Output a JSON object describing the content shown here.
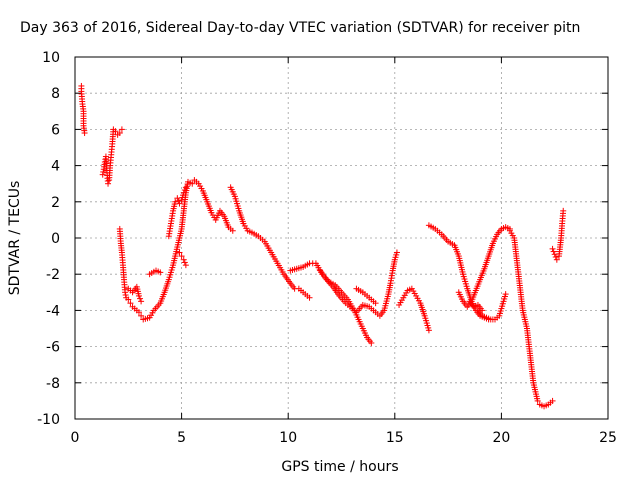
{
  "chart_data": {
    "type": "scatter",
    "title": "Day 363 of 2016, Sidereal Day-to-day VTEC variation (SDTVAR) for receiver pitn",
    "xlabel": "GPS time / hours",
    "ylabel": "SDTVAR / TECUs",
    "xlim": [
      0,
      25
    ],
    "ylim": [
      -10,
      10
    ],
    "xticks": [
      "0",
      "5",
      "10",
      "15",
      "20",
      "25"
    ],
    "yticks": [
      "-10",
      "-8",
      "-6",
      "-4",
      "-2",
      "0",
      "2",
      "4",
      "6",
      "8",
      "10"
    ],
    "grid": true,
    "marker": "+",
    "color": "#ff0000",
    "series": [
      {
        "name": "pitn",
        "segments": [
          [
            [
              0.3,
              8.4
            ],
            [
              0.3,
              8.1
            ],
            [
              0.35,
              7.4
            ],
            [
              0.4,
              7.0
            ],
            [
              0.4,
              6.6
            ],
            [
              0.4,
              6.2
            ],
            [
              0.45,
              5.8
            ]
          ],
          [
            [
              1.3,
              3.5
            ],
            [
              1.35,
              3.8
            ],
            [
              1.4,
              4.2
            ],
            [
              1.45,
              4.5
            ],
            [
              1.5,
              3.6
            ],
            [
              1.55,
              3.0
            ],
            [
              1.6,
              3.2
            ],
            [
              1.65,
              4.0
            ],
            [
              1.7,
              4.6
            ],
            [
              1.75,
              5.2
            ],
            [
              1.8,
              6.0
            ],
            [
              1.9,
              5.9
            ],
            [
              2.0,
              5.7
            ],
            [
              2.1,
              5.8
            ],
            [
              2.2,
              6.0
            ]
          ],
          [
            [
              2.1,
              0.5
            ],
            [
              2.15,
              -0.3
            ],
            [
              2.2,
              -0.8
            ],
            [
              2.25,
              -1.5
            ],
            [
              2.3,
              -2.3
            ],
            [
              2.35,
              -3.0
            ],
            [
              2.4,
              -3.3
            ],
            [
              2.5,
              -3.4
            ],
            [
              2.6,
              -3.6
            ],
            [
              2.7,
              -3.8
            ],
            [
              2.8,
              -3.9
            ],
            [
              2.9,
              -4.0
            ],
            [
              3.0,
              -4.1
            ],
            [
              3.1,
              -4.3
            ]
          ],
          [
            [
              2.5,
              -2.8
            ],
            [
              2.7,
              -3.0
            ],
            [
              2.9,
              -2.7
            ],
            [
              3.0,
              -3.2
            ],
            [
              3.1,
              -3.5
            ]
          ],
          [
            [
              3.2,
              -4.5
            ],
            [
              3.5,
              -4.4
            ],
            [
              3.7,
              -4.0
            ],
            [
              4.0,
              -3.6
            ],
            [
              4.2,
              -3.0
            ],
            [
              4.4,
              -2.3
            ],
            [
              4.6,
              -1.5
            ],
            [
              4.8,
              -0.5
            ],
            [
              5.0,
              0.5
            ],
            [
              5.1,
              1.5
            ],
            [
              5.2,
              2.5
            ],
            [
              5.3,
              3.1
            ],
            [
              5.5,
              3.0
            ],
            [
              5.6,
              3.2
            ],
            [
              5.8,
              3.0
            ],
            [
              6.0,
              2.6
            ],
            [
              6.2,
              2.0
            ],
            [
              6.4,
              1.4
            ],
            [
              6.6,
              1.0
            ],
            [
              6.8,
              1.5
            ],
            [
              7.0,
              1.2
            ],
            [
              7.2,
              0.6
            ],
            [
              7.4,
              0.4
            ]
          ],
          [
            [
              3.5,
              -2.0
            ],
            [
              3.8,
              -1.8
            ],
            [
              4.0,
              -1.9
            ]
          ],
          [
            [
              4.4,
              0.1
            ],
            [
              4.5,
              0.8
            ],
            [
              4.6,
              1.5
            ],
            [
              4.7,
              2.0
            ],
            [
              4.8,
              2.2
            ],
            [
              4.9,
              1.9
            ],
            [
              5.0,
              2.1
            ],
            [
              5.1,
              2.5
            ],
            [
              5.2,
              2.8
            ]
          ],
          [
            [
              4.9,
              -0.8
            ],
            [
              5.0,
              -1.0
            ],
            [
              5.1,
              -1.2
            ],
            [
              5.2,
              -1.5
            ]
          ],
          [
            [
              7.3,
              2.8
            ],
            [
              7.5,
              2.3
            ],
            [
              7.7,
              1.5
            ],
            [
              7.9,
              0.8
            ],
            [
              8.1,
              0.4
            ],
            [
              8.3,
              0.3
            ],
            [
              8.6,
              0.1
            ],
            [
              8.9,
              -0.2
            ],
            [
              9.2,
              -0.8
            ],
            [
              9.5,
              -1.4
            ],
            [
              9.8,
              -2.0
            ],
            [
              10.1,
              -2.5
            ],
            [
              10.3,
              -2.8
            ],
            [
              10.5,
              -2.8
            ],
            [
              10.7,
              -3.0
            ],
            [
              11.0,
              -3.3
            ]
          ],
          [
            [
              10.1,
              -1.8
            ],
            [
              10.4,
              -1.7
            ],
            [
              10.7,
              -1.6
            ],
            [
              11.0,
              -1.4
            ],
            [
              11.3,
              -1.4
            ],
            [
              11.6,
              -2.0
            ],
            [
              11.9,
              -2.4
            ],
            [
              12.2,
              -2.6
            ],
            [
              12.5,
              -3.0
            ],
            [
              12.8,
              -3.4
            ],
            [
              13.1,
              -4.0
            ],
            [
              13.3,
              -4.5
            ],
            [
              13.5,
              -5.0
            ],
            [
              13.7,
              -5.5
            ],
            [
              13.9,
              -5.8
            ]
          ],
          [
            [
              11.5,
              -1.8
            ],
            [
              11.8,
              -2.3
            ],
            [
              12.1,
              -2.7
            ],
            [
              12.4,
              -3.2
            ],
            [
              12.7,
              -3.6
            ],
            [
              13.0,
              -3.9
            ],
            [
              13.2,
              -4.1
            ],
            [
              13.5,
              -3.7
            ],
            [
              13.8,
              -3.8
            ],
            [
              14.1,
              -4.1
            ],
            [
              14.3,
              -4.3
            ],
            [
              14.5,
              -4.0
            ],
            [
              14.7,
              -3.1
            ],
            [
              14.8,
              -2.5
            ],
            [
              14.9,
              -1.8
            ],
            [
              15.0,
              -1.2
            ],
            [
              15.1,
              -0.8
            ]
          ],
          [
            [
              13.2,
              -2.8
            ],
            [
              13.5,
              -3.0
            ],
            [
              13.8,
              -3.3
            ],
            [
              14.1,
              -3.6
            ]
          ],
          [
            [
              15.2,
              -3.7
            ],
            [
              15.4,
              -3.3
            ],
            [
              15.6,
              -2.9
            ],
            [
              15.8,
              -2.8
            ],
            [
              16.0,
              -3.2
            ],
            [
              16.2,
              -3.6
            ],
            [
              16.4,
              -4.3
            ],
            [
              16.6,
              -5.1
            ]
          ],
          [
            [
              16.6,
              0.7
            ],
            [
              16.9,
              0.5
            ],
            [
              17.2,
              0.2
            ],
            [
              17.5,
              -0.2
            ],
            [
              17.8,
              -0.4
            ],
            [
              18.0,
              -1.0
            ],
            [
              18.2,
              -2.0
            ],
            [
              18.4,
              -2.8
            ],
            [
              18.6,
              -3.5
            ],
            [
              18.8,
              -4.0
            ],
            [
              19.0,
              -4.3
            ],
            [
              19.2,
              -4.4
            ],
            [
              19.4,
              -4.5
            ],
            [
              19.6,
              -4.5
            ]
          ],
          [
            [
              18.0,
              -3.0
            ],
            [
              18.2,
              -3.5
            ],
            [
              18.4,
              -3.8
            ],
            [
              18.6,
              -3.5
            ],
            [
              18.8,
              -2.9
            ],
            [
              19.0,
              -2.3
            ],
            [
              19.2,
              -1.7
            ],
            [
              19.4,
              -1.0
            ],
            [
              19.6,
              -0.3
            ],
            [
              19.8,
              0.2
            ],
            [
              20.0,
              0.5
            ],
            [
              20.2,
              0.6
            ],
            [
              20.4,
              0.5
            ]
          ],
          [
            [
              18.9,
              -4.0
            ],
            [
              19.1,
              -4.3
            ],
            [
              19.3,
              -4.4
            ],
            [
              19.5,
              -4.5
            ],
            [
              19.7,
              -4.5
            ],
            [
              19.9,
              -4.3
            ],
            [
              20.1,
              -3.5
            ],
            [
              20.2,
              -3.1
            ]
          ],
          [
            [
              18.5,
              -3.5
            ],
            [
              18.7,
              -3.8
            ],
            [
              18.9,
              -3.7
            ],
            [
              19.1,
              -4.0
            ]
          ],
          [
            [
              20.4,
              0.4
            ],
            [
              20.6,
              0.0
            ],
            [
              20.7,
              -1.0
            ],
            [
              20.8,
              -2.0
            ],
            [
              20.9,
              -3.0
            ],
            [
              21.0,
              -4.0
            ],
            [
              21.2,
              -5.0
            ],
            [
              21.3,
              -6.0
            ],
            [
              21.4,
              -7.0
            ],
            [
              21.5,
              -8.0
            ],
            [
              21.6,
              -8.5
            ],
            [
              21.7,
              -9.0
            ],
            [
              21.8,
              -9.2
            ],
            [
              22.0,
              -9.3
            ],
            [
              22.2,
              -9.2
            ],
            [
              22.4,
              -9.0
            ]
          ],
          [
            [
              22.4,
              -0.6
            ],
            [
              22.5,
              -0.9
            ],
            [
              22.6,
              -1.2
            ],
            [
              22.7,
              -1.0
            ],
            [
              22.75,
              -0.5
            ],
            [
              22.8,
              0.0
            ],
            [
              22.85,
              0.8
            ],
            [
              22.9,
              1.5
            ]
          ]
        ]
      }
    ]
  }
}
